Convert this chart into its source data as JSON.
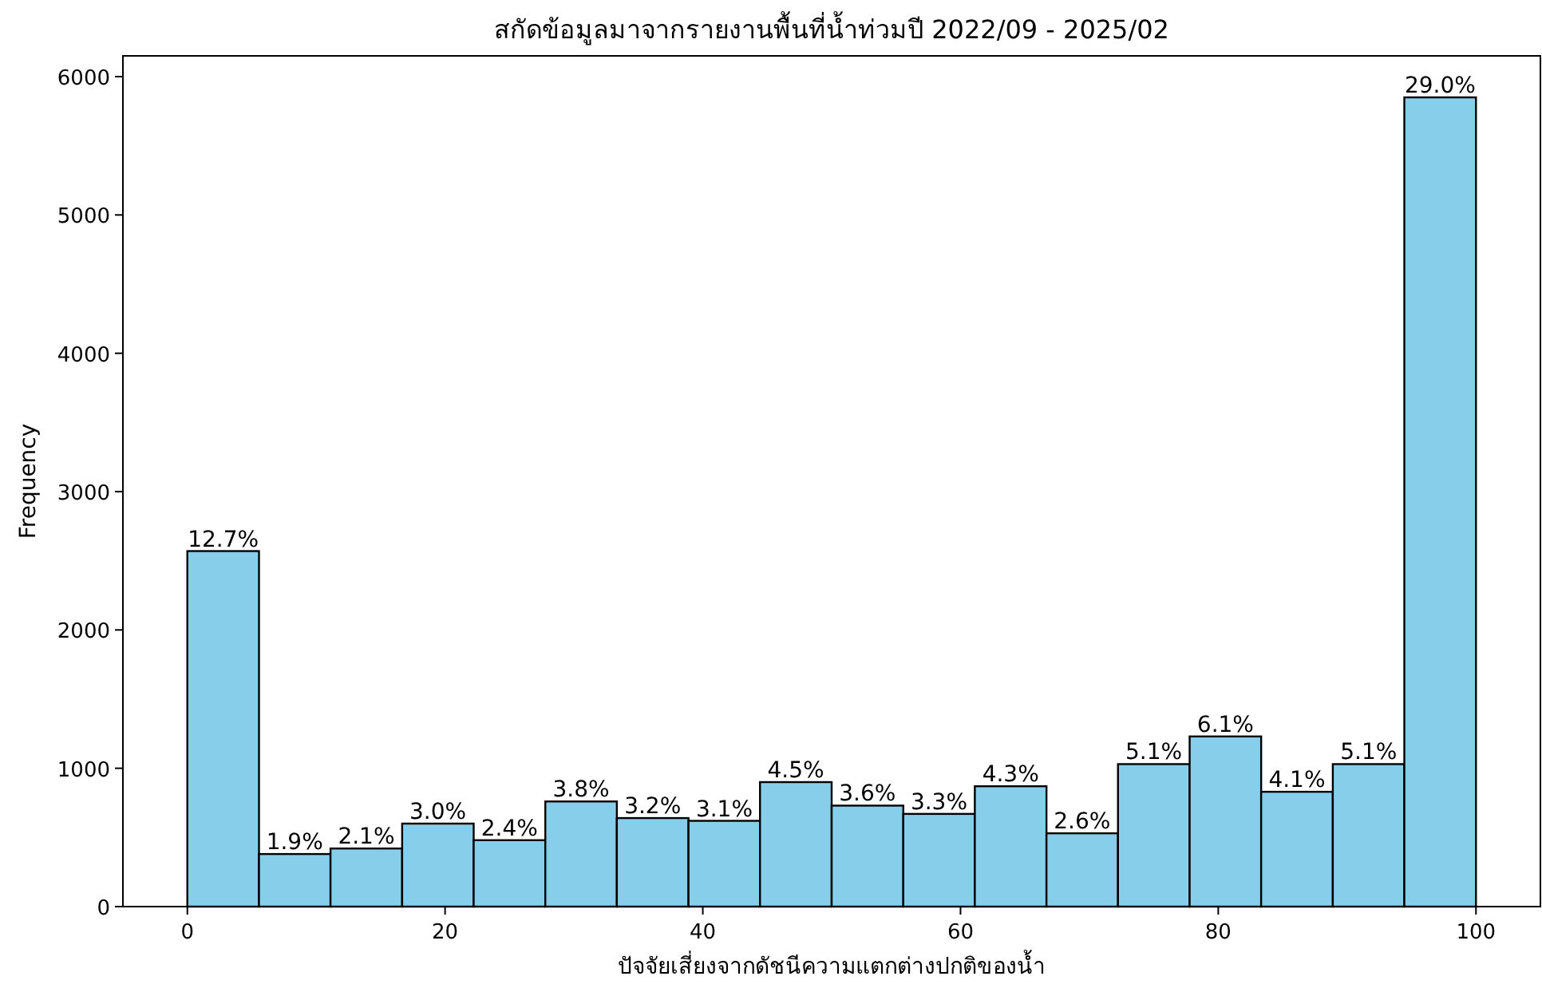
{
  "chart_data": {
    "type": "histogram",
    "title": "สกัดข้อมูลมาจากรายงานพื้นที่น้ำท่วมปี 2022/09 - 2025/02",
    "xlabel": "ปัจจัยเสี่ยงจากดัชนีความแตกต่างปกติของน้ำ",
    "ylabel": "Frequency",
    "bins": [
      0,
      5.56,
      11.11,
      16.67,
      22.22,
      27.78,
      33.33,
      38.89,
      44.44,
      50,
      55.56,
      61.11,
      66.67,
      72.22,
      77.78,
      83.33,
      88.89,
      94.44,
      100
    ],
    "values": [
      2570,
      380,
      420,
      600,
      480,
      760,
      640,
      620,
      900,
      730,
      670,
      870,
      530,
      1030,
      1230,
      830,
      1030,
      5850
    ],
    "annotations": [
      {
        "text": "12.7%",
        "x": 2.78,
        "y": 2570
      },
      {
        "text": "1.9%",
        "x": 8.33,
        "y": 380
      },
      {
        "text": "2.1%",
        "x": 13.89,
        "y": 420
      },
      {
        "text": "3.0%",
        "x": 19.44,
        "y": 600
      },
      {
        "text": "2.4%",
        "x": 25,
        "y": 480
      },
      {
        "text": "3.8%",
        "x": 30.56,
        "y": 760
      },
      {
        "text": "3.2%",
        "x": 36.11,
        "y": 640
      },
      {
        "text": "3.1%",
        "x": 41.67,
        "y": 620
      },
      {
        "text": "4.5%",
        "x": 47.22,
        "y": 900
      },
      {
        "text": "3.6%",
        "x": 52.78,
        "y": 730
      },
      {
        "text": "3.3%",
        "x": 58.33,
        "y": 670
      },
      {
        "text": "4.3%",
        "x": 63.89,
        "y": 870
      },
      {
        "text": "2.6%",
        "x": 69.44,
        "y": 530
      },
      {
        "text": "5.1%",
        "x": 75,
        "y": 1030
      },
      {
        "text": "6.1%",
        "x": 80.56,
        "y": 1230
      },
      {
        "text": "4.1%",
        "x": 86.11,
        "y": 830
      },
      {
        "text": "5.1%",
        "x": 91.67,
        "y": 1030
      },
      {
        "text": "29.0%",
        "x": 97.22,
        "y": 5850
      }
    ],
    "color": "#87ceeb",
    "xlim": [
      -5,
      105
    ],
    "ylim": [
      0,
      6150
    ],
    "xticks": [
      0,
      20,
      40,
      60,
      80,
      100
    ],
    "yticks": [
      0,
      1000,
      2000,
      3000,
      4000,
      5000,
      6000
    ]
  }
}
